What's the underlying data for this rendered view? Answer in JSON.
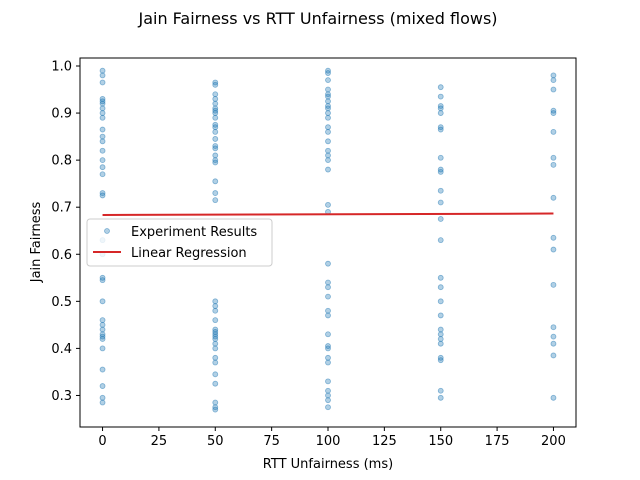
{
  "chart_data": {
    "type": "scatter",
    "title": "Jain Fairness vs RTT Unfairness (mixed flows)",
    "xlabel": "RTT Unfairness (ms)",
    "ylabel": "Jain Fairness",
    "xlim": [
      -10,
      210
    ],
    "ylim": [
      0.233,
      1.017
    ],
    "xticks": [
      "0",
      "25",
      "50",
      "75",
      "100",
      "125",
      "150",
      "175",
      "200"
    ],
    "yticks": [
      "0.3",
      "0.4",
      "0.5",
      "0.6",
      "0.7",
      "0.8",
      "0.9",
      "1.0"
    ],
    "grid": false,
    "legend_position": "center-left",
    "colors": {
      "points": "#1f77b4",
      "regression": "#d62728"
    },
    "series": [
      {
        "name": "Experiment Results",
        "kind": "scatter",
        "x0": [
          0.99,
          0.98,
          0.965,
          0.93,
          0.925,
          0.92,
          0.91,
          0.9,
          0.89,
          0.865,
          0.85,
          0.84,
          0.82,
          0.8,
          0.785,
          0.77,
          0.73,
          0.725,
          0.63,
          0.6,
          0.55,
          0.545,
          0.5,
          0.46,
          0.45,
          0.44,
          0.43,
          0.425,
          0.42,
          0.4,
          0.355,
          0.32,
          0.295,
          0.285
        ],
        "x50": [
          0.965,
          0.96,
          0.94,
          0.93,
          0.92,
          0.91,
          0.905,
          0.9,
          0.89,
          0.875,
          0.87,
          0.86,
          0.845,
          0.83,
          0.825,
          0.81,
          0.8,
          0.795,
          0.755,
          0.73,
          0.715,
          0.5,
          0.49,
          0.48,
          0.46,
          0.44,
          0.435,
          0.43,
          0.425,
          0.42,
          0.41,
          0.4,
          0.38,
          0.37,
          0.345,
          0.325,
          0.285,
          0.275,
          0.27
        ],
        "x100": [
          0.99,
          0.985,
          0.97,
          0.95,
          0.94,
          0.935,
          0.925,
          0.915,
          0.91,
          0.9,
          0.89,
          0.87,
          0.86,
          0.84,
          0.82,
          0.81,
          0.8,
          0.78,
          0.705,
          0.69,
          0.58,
          0.54,
          0.53,
          0.51,
          0.48,
          0.47,
          0.43,
          0.405,
          0.4,
          0.38,
          0.37,
          0.33,
          0.31,
          0.3,
          0.29,
          0.275
        ],
        "x150": [
          0.955,
          0.935,
          0.915,
          0.91,
          0.9,
          0.87,
          0.865,
          0.805,
          0.78,
          0.775,
          0.735,
          0.71,
          0.675,
          0.63,
          0.55,
          0.53,
          0.5,
          0.47,
          0.44,
          0.43,
          0.42,
          0.41,
          0.38,
          0.375,
          0.31,
          0.295
        ],
        "x200": [
          0.98,
          0.97,
          0.95,
          0.905,
          0.9,
          0.86,
          0.805,
          0.79,
          0.72,
          0.635,
          0.61,
          0.535,
          0.445,
          0.425,
          0.41,
          0.385,
          0.295
        ]
      },
      {
        "name": "Linear Regression",
        "kind": "line",
        "x": [
          0,
          200
        ],
        "y": [
          0.6835,
          0.6865
        ]
      }
    ]
  }
}
